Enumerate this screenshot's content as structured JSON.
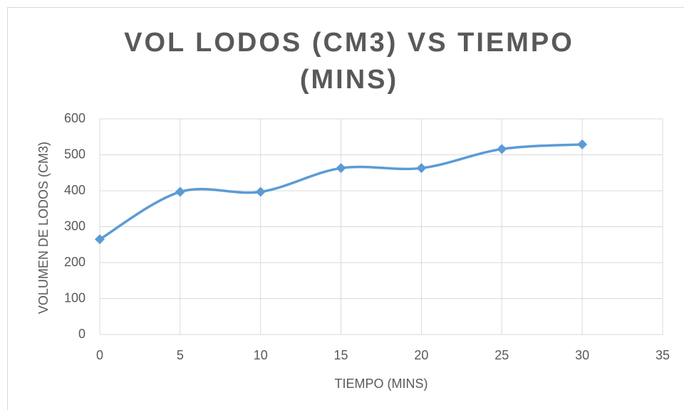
{
  "chart_data": {
    "type": "line",
    "title": "VOL LODOS (CM3) VS TIEMPO (MINS)",
    "x_label": "TIEMPO (MINS)",
    "y_label": "VOLUMEN DE LODOS (CM3)",
    "x": [
      0,
      5,
      10,
      15,
      20,
      25,
      30
    ],
    "values": [
      265,
      397,
      397,
      463,
      463,
      516,
      529
    ],
    "color": "#5b9bd5",
    "smooth": true,
    "marker": "diamond",
    "xlim": [
      0,
      35
    ],
    "xticks": [
      0,
      5,
      10,
      15,
      20,
      25,
      30,
      35
    ],
    "ylim": [
      0,
      600
    ],
    "yticks": [
      0,
      100,
      200,
      300,
      400,
      500,
      600
    ],
    "grid": true
  }
}
